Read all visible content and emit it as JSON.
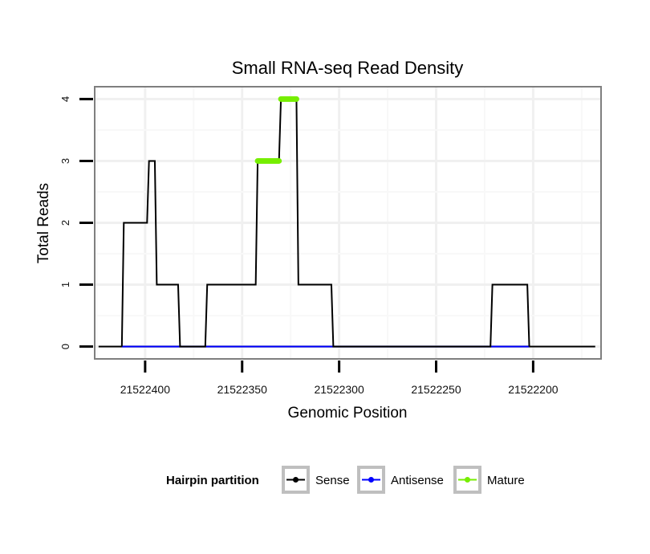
{
  "chart_data": {
    "type": "line",
    "title": "Small RNA-seq Read Density",
    "xlabel": "Genomic Position",
    "ylabel": "Total Reads",
    "x_reversed": true,
    "xlim": [
      21522165,
      21522426
    ],
    "ylim": [
      -0.2,
      4.2
    ],
    "x_ticks": [
      21522400,
      21522350,
      21522300,
      21522250,
      21522200
    ],
    "x_tick_labels": [
      "21522400",
      "21522350",
      "21522300",
      "21522250",
      "21522200"
    ],
    "y_ticks": [
      0,
      1,
      2,
      3,
      4
    ],
    "y_tick_labels": [
      "0",
      "1",
      "2",
      "3",
      "4"
    ],
    "grid": true,
    "legend": {
      "title": "Hairpin partition",
      "position": "bottom",
      "entries": [
        {
          "label": "Sense",
          "color": "#000000"
        },
        {
          "label": "Antisense",
          "color": "#0000ff"
        },
        {
          "label": "Mature",
          "color": "#76ee00"
        }
      ]
    },
    "series": [
      {
        "name": "Sense",
        "color": "#000000",
        "points": [
          [
            21522412,
            0
          ],
          [
            21522411,
            2
          ],
          [
            21522399,
            2
          ],
          [
            21522398,
            3
          ],
          [
            21522395,
            3
          ],
          [
            21522394,
            1
          ],
          [
            21522383,
            1
          ],
          [
            21522382,
            0
          ],
          [
            21522369,
            0
          ],
          [
            21522368,
            1
          ],
          [
            21522343,
            1
          ],
          [
            21522342,
            3
          ],
          [
            21522331,
            3
          ],
          [
            21522330,
            4
          ],
          [
            21522322,
            4
          ],
          [
            21522321,
            1
          ],
          [
            21522304,
            1
          ],
          [
            21522303,
            0
          ],
          [
            21522222,
            0
          ],
          [
            21522221,
            1
          ],
          [
            21522203,
            1
          ],
          [
            21522202,
            0
          ]
        ]
      },
      {
        "name": "Antisense",
        "color": "#0000ff",
        "points": [
          [
            21522412,
            0
          ],
          [
            21522202,
            0
          ]
        ]
      },
      {
        "name": "Mature",
        "color": "#76ee00",
        "segments": [
          {
            "x_start": 21522342,
            "x_end": 21522331,
            "y": 3
          },
          {
            "x_start": 21522330,
            "x_end": 21522322,
            "y": 4
          }
        ]
      }
    ],
    "baseline_extent": [
      21522424,
      21522168
    ]
  }
}
